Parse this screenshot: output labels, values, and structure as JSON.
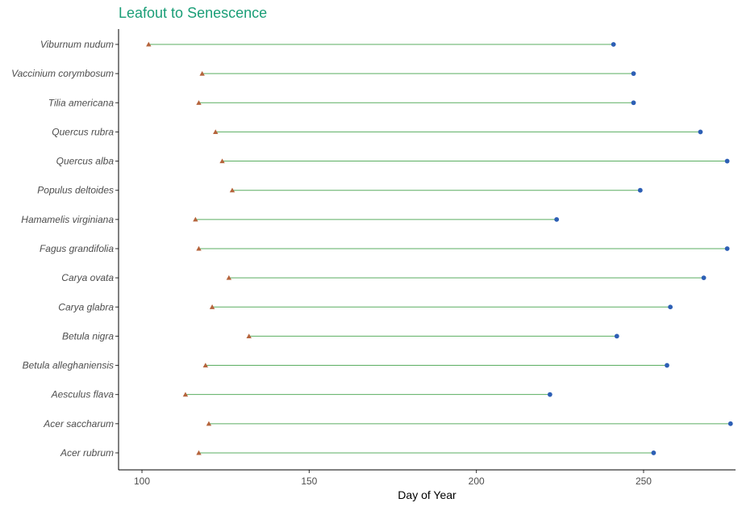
{
  "chart_data": {
    "type": "dumbbell",
    "title": "Leafout to Senescence",
    "xlabel": "Day of Year",
    "ylabel": "",
    "xlim": [
      93,
      277.5
    ],
    "x_ticks": [
      100,
      150,
      200,
      250
    ],
    "grid": false,
    "legend": "none",
    "categories": [
      "Viburnum nudum",
      "Vaccinium corymbosum",
      "Tilia americana",
      "Quercus rubra",
      "Quercus alba",
      "Populus deltoides",
      "Hamamelis virginiana",
      "Fagus grandifolia",
      "Carya ovata",
      "Carya glabra",
      "Betula nigra",
      "Betula alleghaniensis",
      "Aesculus flava",
      "Acer saccharum",
      "Acer rubrum"
    ],
    "series": [
      {
        "marker": "triangle",
        "color": "#b5643c",
        "values": [
          102,
          118,
          117,
          122,
          124,
          127,
          116,
          117,
          126,
          121,
          132,
          119,
          113,
          120,
          117
        ]
      },
      {
        "marker": "circle",
        "color": "#2d5fb5",
        "values": [
          241,
          247,
          247,
          267,
          275,
          249,
          224,
          275,
          268,
          258,
          242,
          257,
          222,
          276,
          253
        ]
      }
    ],
    "segment_color": "#5aae61"
  }
}
